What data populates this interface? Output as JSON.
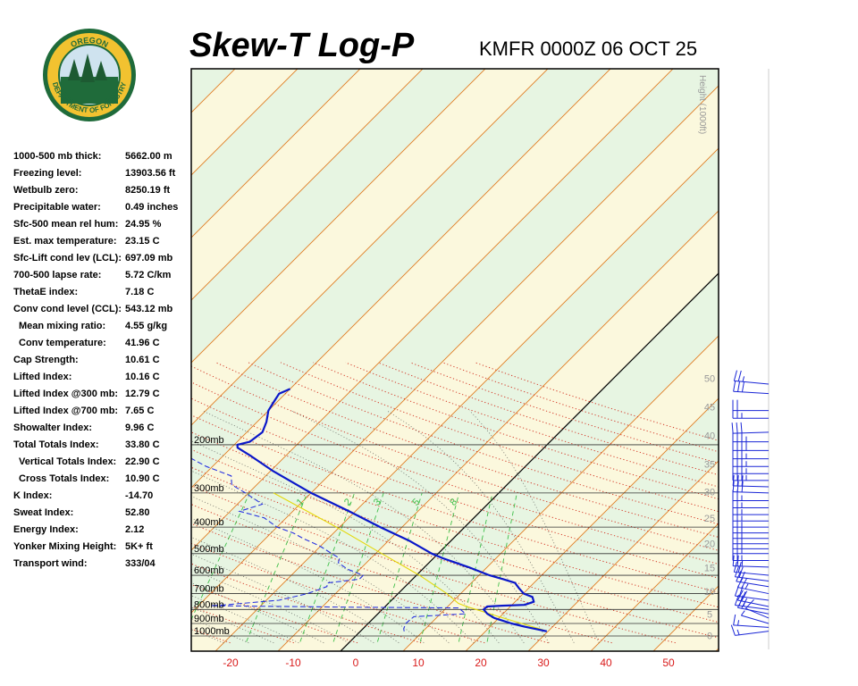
{
  "header": {
    "title": "Skew-T Log-P",
    "station": "KMFR 0000Z 06 OCT 25"
  },
  "logo": {
    "text_top": "OREGON",
    "text_bottom": "DEPARTMENT OF FORESTRY",
    "colors": {
      "ring": "#f2c230",
      "center": "#1f6b3a",
      "sky": "#cfe3ef"
    }
  },
  "stats": [
    {
      "label": "1000-500 mb thick:",
      "value": "5662.00 m",
      "indent": false
    },
    {
      "label": "Freezing level:",
      "value": "13903.56 ft",
      "indent": false
    },
    {
      "label": "Wetbulb zero:",
      "value": "8250.19 ft",
      "indent": false
    },
    {
      "label": "Precipitable water:",
      "value": "0.49 inches",
      "indent": false
    },
    {
      "label": "Sfc-500 mean rel hum:",
      "value": "24.95 %",
      "indent": false
    },
    {
      "label": "Est. max temperature:",
      "value": "23.15 C",
      "indent": false
    },
    {
      "label": "Sfc-Lift cond lev (LCL):",
      "value": "697.09 mb",
      "indent": false
    },
    {
      "label": "700-500 lapse rate:",
      "value": "5.72 C/km",
      "indent": false
    },
    {
      "label": "ThetaE index:",
      "value": "7.18 C",
      "indent": false
    },
    {
      "label": "Conv cond level (CCL):",
      "value": "543.12 mb",
      "indent": false
    },
    {
      "label": "Mean mixing ratio:",
      "value": "4.55 g/kg",
      "indent": true
    },
    {
      "label": "Conv temperature:",
      "value": "41.96 C",
      "indent": true
    },
    {
      "label": "Cap Strength:",
      "value": "10.61 C",
      "indent": false
    },
    {
      "label": "Lifted Index:",
      "value": "10.16 C",
      "indent": false
    },
    {
      "label": "Lifted Index @300 mb:",
      "value": "12.79 C",
      "indent": false
    },
    {
      "label": "Lifted Index @700 mb:",
      "value": "7.65 C",
      "indent": false
    },
    {
      "label": "Showalter Index:",
      "value": "9.96 C",
      "indent": false
    },
    {
      "label": "Total Totals Index:",
      "value": "33.80 C",
      "indent": false
    },
    {
      "label": "Vertical Totals Index:",
      "value": "22.90 C",
      "indent": true
    },
    {
      "label": "Cross Totals Index:",
      "value": "10.90 C",
      "indent": true
    },
    {
      "label": "K Index:",
      "value": "-14.70",
      "indent": false
    },
    {
      "label": "Sweat Index:",
      "value": "52.80",
      "indent": false
    },
    {
      "label": "Energy Index:",
      "value": "2.12",
      "indent": false
    },
    {
      "label": "Yonker Mixing Height:",
      "value": "5K+ ft",
      "indent": false
    },
    {
      "label": "Transport wind:",
      "value": "333/04",
      "indent": false
    }
  ],
  "chart_data": {
    "type": "line",
    "xlabel": "",
    "ylabel": "",
    "x_ticks": [
      -20,
      -10,
      0,
      10,
      20,
      30,
      40,
      50
    ],
    "pressure_labels": [
      {
        "p": 200,
        "label": "200mb"
      },
      {
        "p": 300,
        "label": "300mb"
      },
      {
        "p": 400,
        "label": "400mb"
      },
      {
        "p": 500,
        "label": "500mb"
      },
      {
        "p": 600,
        "label": "600mb"
      },
      {
        "p": 700,
        "label": "700mb"
      },
      {
        "p": 800,
        "label": "800mb"
      },
      {
        "p": 900,
        "label": "900mb"
      },
      {
        "p": 1000,
        "label": "1000mb"
      }
    ],
    "height_axis": {
      "title": "Height (1000ft)",
      "ticks": [
        0,
        5,
        10,
        15,
        20,
        25,
        30,
        35,
        40,
        45,
        50
      ]
    },
    "mixing_ratio_labels": [
      "1",
      "2",
      "3",
      "5",
      "8"
    ],
    "temperature_profile": [
      {
        "p": 962,
        "t": 29.8
      },
      {
        "p": 950,
        "t": 28.5
      },
      {
        "p": 925,
        "t": 25.5
      },
      {
        "p": 900,
        "t": 22.9
      },
      {
        "p": 860,
        "t": 19.3
      },
      {
        "p": 830,
        "t": 17.5
      },
      {
        "p": 800,
        "t": 16.2
      },
      {
        "p": 780,
        "t": 16.3
      },
      {
        "p": 775,
        "t": 18.5
      },
      {
        "p": 770,
        "t": 22.0
      },
      {
        "p": 750,
        "t": 23.0
      },
      {
        "p": 720,
        "t": 22.0
      },
      {
        "p": 700,
        "t": 20.1
      },
      {
        "p": 670,
        "t": 18.5
      },
      {
        "p": 650,
        "t": 17.5
      },
      {
        "p": 640,
        "t": 17.0
      },
      {
        "p": 620,
        "t": 14.5
      },
      {
        "p": 600,
        "t": 11.7
      },
      {
        "p": 560,
        "t": 7.0
      },
      {
        "p": 520,
        "t": 1.5
      },
      {
        "p": 500,
        "t": -1.0
      },
      {
        "p": 450,
        "t": -6.5
      },
      {
        "p": 400,
        "t": -13.5
      },
      {
        "p": 350,
        "t": -21.0
      },
      {
        "p": 300,
        "t": -30.0
      },
      {
        "p": 250,
        "t": -39.5
      },
      {
        "p": 220,
        "t": -45.5
      },
      {
        "p": 205,
        "t": -49.0
      },
      {
        "p": 200,
        "t": -49.5
      },
      {
        "p": 195,
        "t": -48.0
      },
      {
        "p": 180,
        "t": -47.5
      },
      {
        "p": 165,
        "t": -48.5
      },
      {
        "p": 150,
        "t": -50.0
      },
      {
        "p": 140,
        "t": -50.5
      },
      {
        "p": 130,
        "t": -51.0
      },
      {
        "p": 125,
        "t": -50.0
      }
    ],
    "dewpoint_profile": [
      {
        "p": 962,
        "t": 7.0
      },
      {
        "p": 940,
        "t": 6.5
      },
      {
        "p": 900,
        "t": 6.0
      },
      {
        "p": 850,
        "t": 6.2
      },
      {
        "p": 830,
        "t": 14.0
      },
      {
        "p": 800,
        "t": 12.5
      },
      {
        "p": 790,
        "t": 12.2
      },
      {
        "p": 785,
        "t": -5.0
      },
      {
        "p": 775,
        "t": -28.0
      },
      {
        "p": 770,
        "t": -26.0
      },
      {
        "p": 740,
        "t": -18.0
      },
      {
        "p": 700,
        "t": -14.5
      },
      {
        "p": 660,
        "t": -12.5
      },
      {
        "p": 640,
        "t": -13.0
      },
      {
        "p": 620,
        "t": -8.5
      },
      {
        "p": 600,
        "t": -8.5
      },
      {
        "p": 570,
        "t": -12.0
      },
      {
        "p": 540,
        "t": -14.5
      },
      {
        "p": 520,
        "t": -15.0
      },
      {
        "p": 500,
        "t": -17.0
      },
      {
        "p": 470,
        "t": -20.0
      },
      {
        "p": 440,
        "t": -24.0
      },
      {
        "p": 420,
        "t": -26.5
      },
      {
        "p": 400,
        "t": -30.0
      },
      {
        "p": 370,
        "t": -33.5
      },
      {
        "p": 350,
        "t": -38.5
      },
      {
        "p": 330,
        "t": -36.0
      },
      {
        "p": 300,
        "t": -40.5
      },
      {
        "p": 280,
        "t": -44.0
      },
      {
        "p": 260,
        "t": -45.5
      },
      {
        "p": 240,
        "t": -51.0
      },
      {
        "p": 215,
        "t": -57.0
      },
      {
        "p": 205,
        "t": -60.0
      },
      {
        "p": 200,
        "t": -66.0
      },
      {
        "p": 185,
        "t": -66.5
      },
      {
        "p": 165,
        "t": -67.0
      },
      {
        "p": 150,
        "t": -69.5
      },
      {
        "p": 135,
        "t": -73.0
      },
      {
        "p": 125,
        "t": -75.0
      }
    ],
    "parcel_profile": [
      {
        "p": 950,
        "t": 29.0
      },
      {
        "p": 900,
        "t": 24.5
      },
      {
        "p": 850,
        "t": 19.8
      },
      {
        "p": 800,
        "t": 15.0
      },
      {
        "p": 780,
        "t": 13.0
      },
      {
        "p": 760,
        "t": 11.2
      },
      {
        "p": 700,
        "t": 7.8
      },
      {
        "p": 600,
        "t": 0.5
      },
      {
        "p": 500,
        "t": -9.0
      },
      {
        "p": 400,
        "t": -20.5
      },
      {
        "p": 300,
        "t": -36.0
      }
    ],
    "wind_barbs": [
      {
        "p": 960,
        "dir": 250,
        "speed": 15
      },
      {
        "p": 930,
        "dir": 280,
        "speed": 15
      },
      {
        "p": 900,
        "dir": 310,
        "speed": 5
      },
      {
        "p": 860,
        "dir": 320,
        "speed": 10
      },
      {
        "p": 830,
        "dir": 300,
        "speed": 20
      },
      {
        "p": 800,
        "dir": 290,
        "speed": 25
      },
      {
        "p": 780,
        "dir": 300,
        "speed": 20
      },
      {
        "p": 740,
        "dir": 290,
        "speed": 25
      },
      {
        "p": 700,
        "dir": 300,
        "speed": 25
      },
      {
        "p": 660,
        "dir": 295,
        "speed": 20
      },
      {
        "p": 630,
        "dir": 290,
        "speed": 20
      },
      {
        "p": 600,
        "dir": 285,
        "speed": 20
      },
      {
        "p": 560,
        "dir": 275,
        "speed": 25
      },
      {
        "p": 530,
        "dir": 270,
        "speed": 25
      },
      {
        "p": 500,
        "dir": 270,
        "speed": 25
      },
      {
        "p": 480,
        "dir": 270,
        "speed": 25
      },
      {
        "p": 460,
        "dir": 270,
        "speed": 25
      },
      {
        "p": 440,
        "dir": 270,
        "speed": 30
      },
      {
        "p": 420,
        "dir": 270,
        "speed": 30
      },
      {
        "p": 400,
        "dir": 270,
        "speed": 25
      },
      {
        "p": 380,
        "dir": 270,
        "speed": 25
      },
      {
        "p": 360,
        "dir": 270,
        "speed": 25
      },
      {
        "p": 340,
        "dir": 270,
        "speed": 25
      },
      {
        "p": 320,
        "dir": 270,
        "speed": 25
      },
      {
        "p": 300,
        "dir": 275,
        "speed": 30
      },
      {
        "p": 285,
        "dir": 275,
        "speed": 30
      },
      {
        "p": 270,
        "dir": 270,
        "speed": 35
      },
      {
        "p": 255,
        "dir": 270,
        "speed": 35
      },
      {
        "p": 240,
        "dir": 270,
        "speed": 35
      },
      {
        "p": 225,
        "dir": 270,
        "speed": 35
      },
      {
        "p": 210,
        "dir": 270,
        "speed": 40
      },
      {
        "p": 195,
        "dir": 270,
        "speed": 35
      },
      {
        "p": 180,
        "dir": 265,
        "speed": 30
      },
      {
        "p": 160,
        "dir": 270,
        "speed": 25
      },
      {
        "p": 150,
        "dir": 270,
        "speed": 20
      },
      {
        "p": 130,
        "dir": 280,
        "speed": 30
      },
      {
        "p": 120,
        "dir": 285,
        "speed": 25
      }
    ],
    "colors": {
      "temperature": "#0a17c9",
      "dewpoint": "#2a34e0",
      "parcel": "#e4d80a",
      "isobar": "#333333",
      "isotherm": "#e07c22",
      "dry_adiabat": "#d43b2a",
      "moist_adiabat": "#333333",
      "mixing_ratio": "#3fbf4a",
      "zero_isotherm": "#000000",
      "band_green": "#e7f5e2",
      "band_yellow": "#fbf8dd",
      "x_tick_label": "#d91a1a",
      "height_label": "#999999",
      "barb": "#1a26d6"
    }
  }
}
